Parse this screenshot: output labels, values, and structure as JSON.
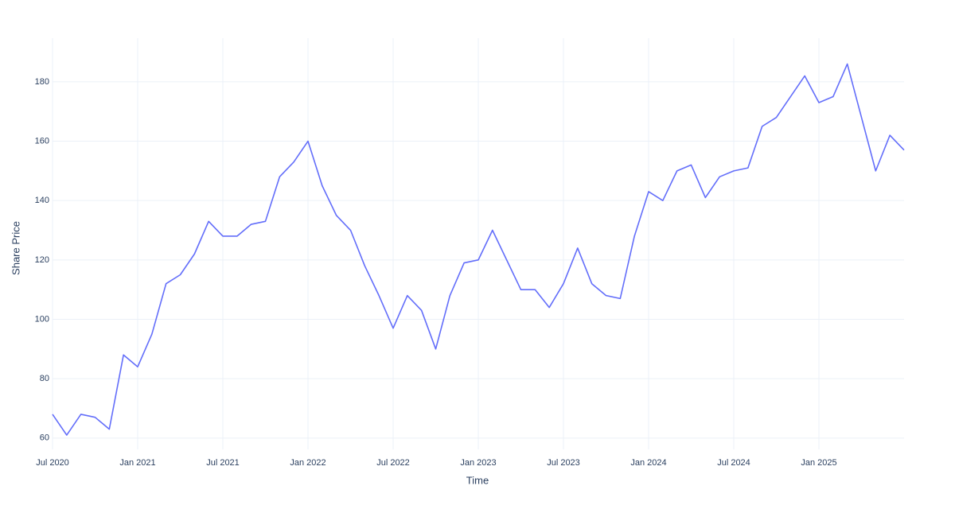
{
  "chart_data": {
    "type": "line",
    "x_label": "Time",
    "y_label": "Share Price",
    "x": [
      "2020-07",
      "2020-08",
      "2020-09",
      "2020-10",
      "2020-11",
      "2020-12",
      "2021-01",
      "2021-02",
      "2021-03",
      "2021-04",
      "2021-05",
      "2021-06",
      "2021-07",
      "2021-08",
      "2021-09",
      "2021-10",
      "2021-11",
      "2021-12",
      "2022-01",
      "2022-02",
      "2022-03",
      "2022-04",
      "2022-05",
      "2022-06",
      "2022-07",
      "2022-08",
      "2022-09",
      "2022-10",
      "2022-11",
      "2022-12",
      "2023-01",
      "2023-02",
      "2023-03",
      "2023-04",
      "2023-05",
      "2023-06",
      "2023-07",
      "2023-08",
      "2023-09",
      "2023-10",
      "2023-11",
      "2023-12",
      "2024-01",
      "2024-02",
      "2024-03",
      "2024-04",
      "2024-05",
      "2024-06",
      "2024-07",
      "2024-08",
      "2024-09",
      "2024-10",
      "2024-11",
      "2024-12",
      "2025-01",
      "2025-02",
      "2025-03",
      "2025-04",
      "2025-05",
      "2025-06",
      "2025-07"
    ],
    "series": [
      {
        "name": "Share Price",
        "color": "#636efa",
        "values": [
          68,
          61,
          68,
          67,
          63,
          88,
          84,
          95,
          112,
          115,
          122,
          133,
          128,
          128,
          132,
          133,
          148,
          153,
          160,
          145,
          135,
          130,
          118,
          108,
          97,
          108,
          103,
          90,
          108,
          119,
          120,
          130,
          120,
          110,
          110,
          104,
          112,
          124,
          112,
          108,
          107,
          128,
          143,
          140,
          150,
          152,
          141,
          148,
          150,
          151,
          165,
          168,
          175,
          182,
          173,
          175,
          186,
          168,
          150,
          162,
          157
        ]
      }
    ],
    "xlim": [
      "2020-07",
      "2025-07"
    ],
    "xticks": [
      {
        "value": "2020-07",
        "label": "Jul 2020"
      },
      {
        "value": "2021-01",
        "label": "Jan 2021"
      },
      {
        "value": "2021-07",
        "label": "Jul 2021"
      },
      {
        "value": "2022-01",
        "label": "Jan 2022"
      },
      {
        "value": "2022-07",
        "label": "Jul 2022"
      },
      {
        "value": "2023-01",
        "label": "Jan 2023"
      },
      {
        "value": "2023-07",
        "label": "Jul 2023"
      },
      {
        "value": "2024-01",
        "label": "Jan 2024"
      },
      {
        "value": "2024-07",
        "label": "Jul 2024"
      },
      {
        "value": "2025-01",
        "label": "Jan 2025"
      }
    ],
    "ylim": [
      56.2,
      194.7
    ],
    "yticks": [
      60,
      80,
      100,
      120,
      140,
      160,
      180
    ],
    "grid": true
  }
}
